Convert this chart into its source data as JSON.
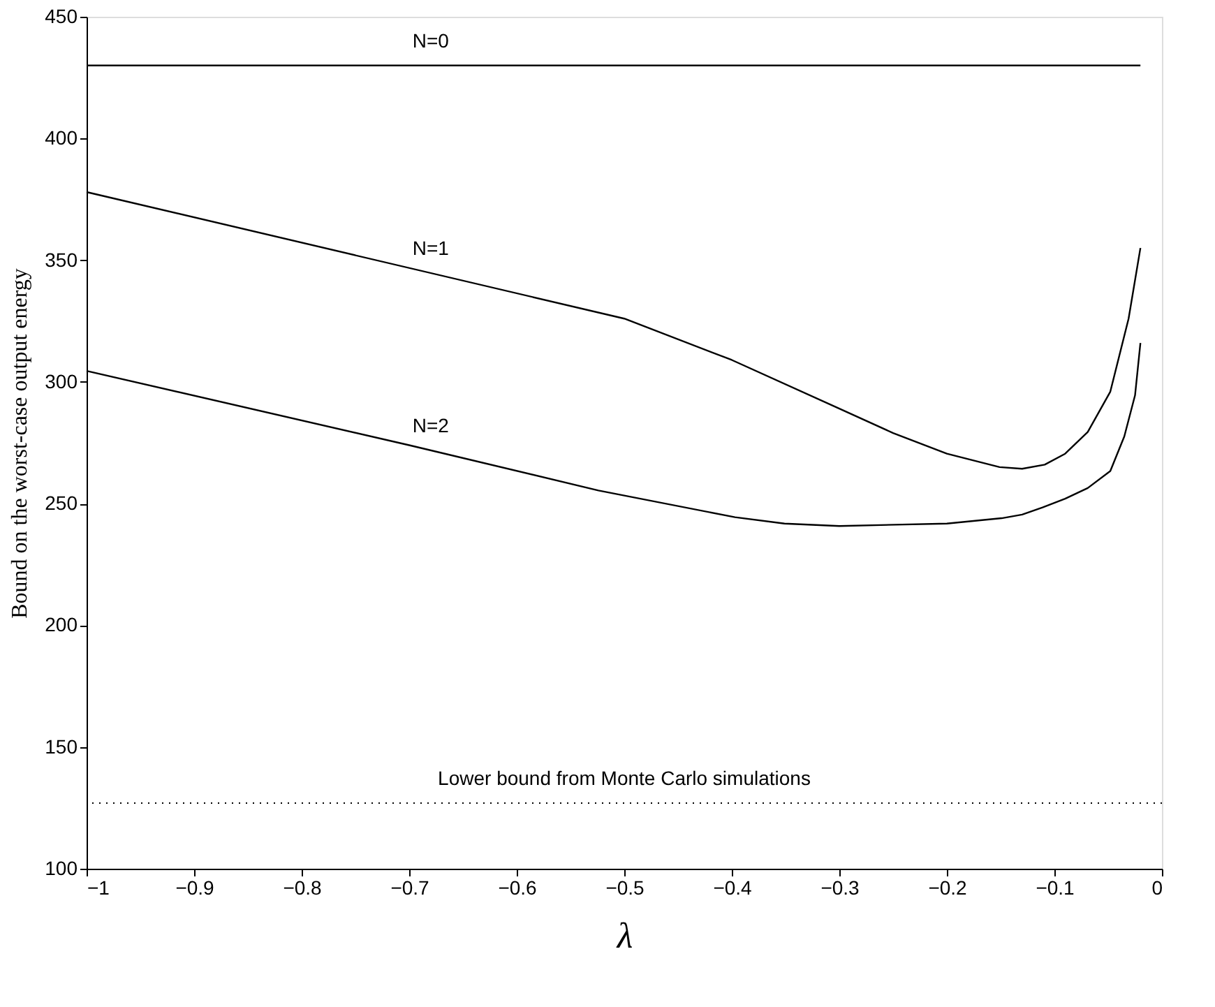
{
  "chart_data": {
    "type": "line",
    "xlabel": "λ",
    "ylabel": "Bound on the worst-case output energy",
    "xlim": [
      -1,
      0
    ],
    "xticks": [
      -1,
      -0.9,
      -0.8,
      -0.7,
      -0.6,
      -0.5,
      -0.4,
      -0.3,
      -0.2,
      -0.1,
      0
    ],
    "ylim": [
      100,
      450
    ],
    "yticks": [
      100,
      150,
      200,
      250,
      300,
      350,
      400,
      450
    ],
    "grid": false,
    "line_style": "solid",
    "marker": "none",
    "series": [
      {
        "name": "N=0",
        "color": "#000000",
        "x": [
          -1,
          -0.02
        ],
        "values": [
          430,
          430
        ]
      },
      {
        "name": "N=1",
        "color": "#000000",
        "x": [
          -1,
          -0.5,
          -0.4,
          -0.3,
          -0.25,
          -0.2,
          -0.151,
          -0.13,
          -0.109,
          -0.09,
          -0.069,
          -0.048,
          -0.031,
          -0.02
        ],
        "values": [
          378,
          326,
          309,
          289,
          279,
          270.5,
          265,
          264.3,
          266,
          270.5,
          279.4,
          296,
          326,
          355
        ]
      },
      {
        "name": "N=2",
        "color": "#000000",
        "x": [
          -1,
          -0.7,
          -0.524,
          -0.397,
          -0.351,
          -0.3,
          -0.2,
          -0.149,
          -0.13,
          -0.111,
          -0.09,
          -0.069,
          -0.048,
          -0.035,
          -0.025,
          -0.02
        ],
        "values": [
          304.5,
          274,
          255.4,
          244.4,
          241.8,
          240.8,
          241.8,
          244,
          245.5,
          248.4,
          252,
          256.4,
          263.4,
          277.6,
          294.5,
          316
        ]
      }
    ],
    "ref_lines": [
      {
        "axis": "y",
        "value": 127,
        "label": "Lower bound from Monte Carlo simulations",
        "color": "#000000",
        "line_style": "dotted"
      }
    ]
  }
}
